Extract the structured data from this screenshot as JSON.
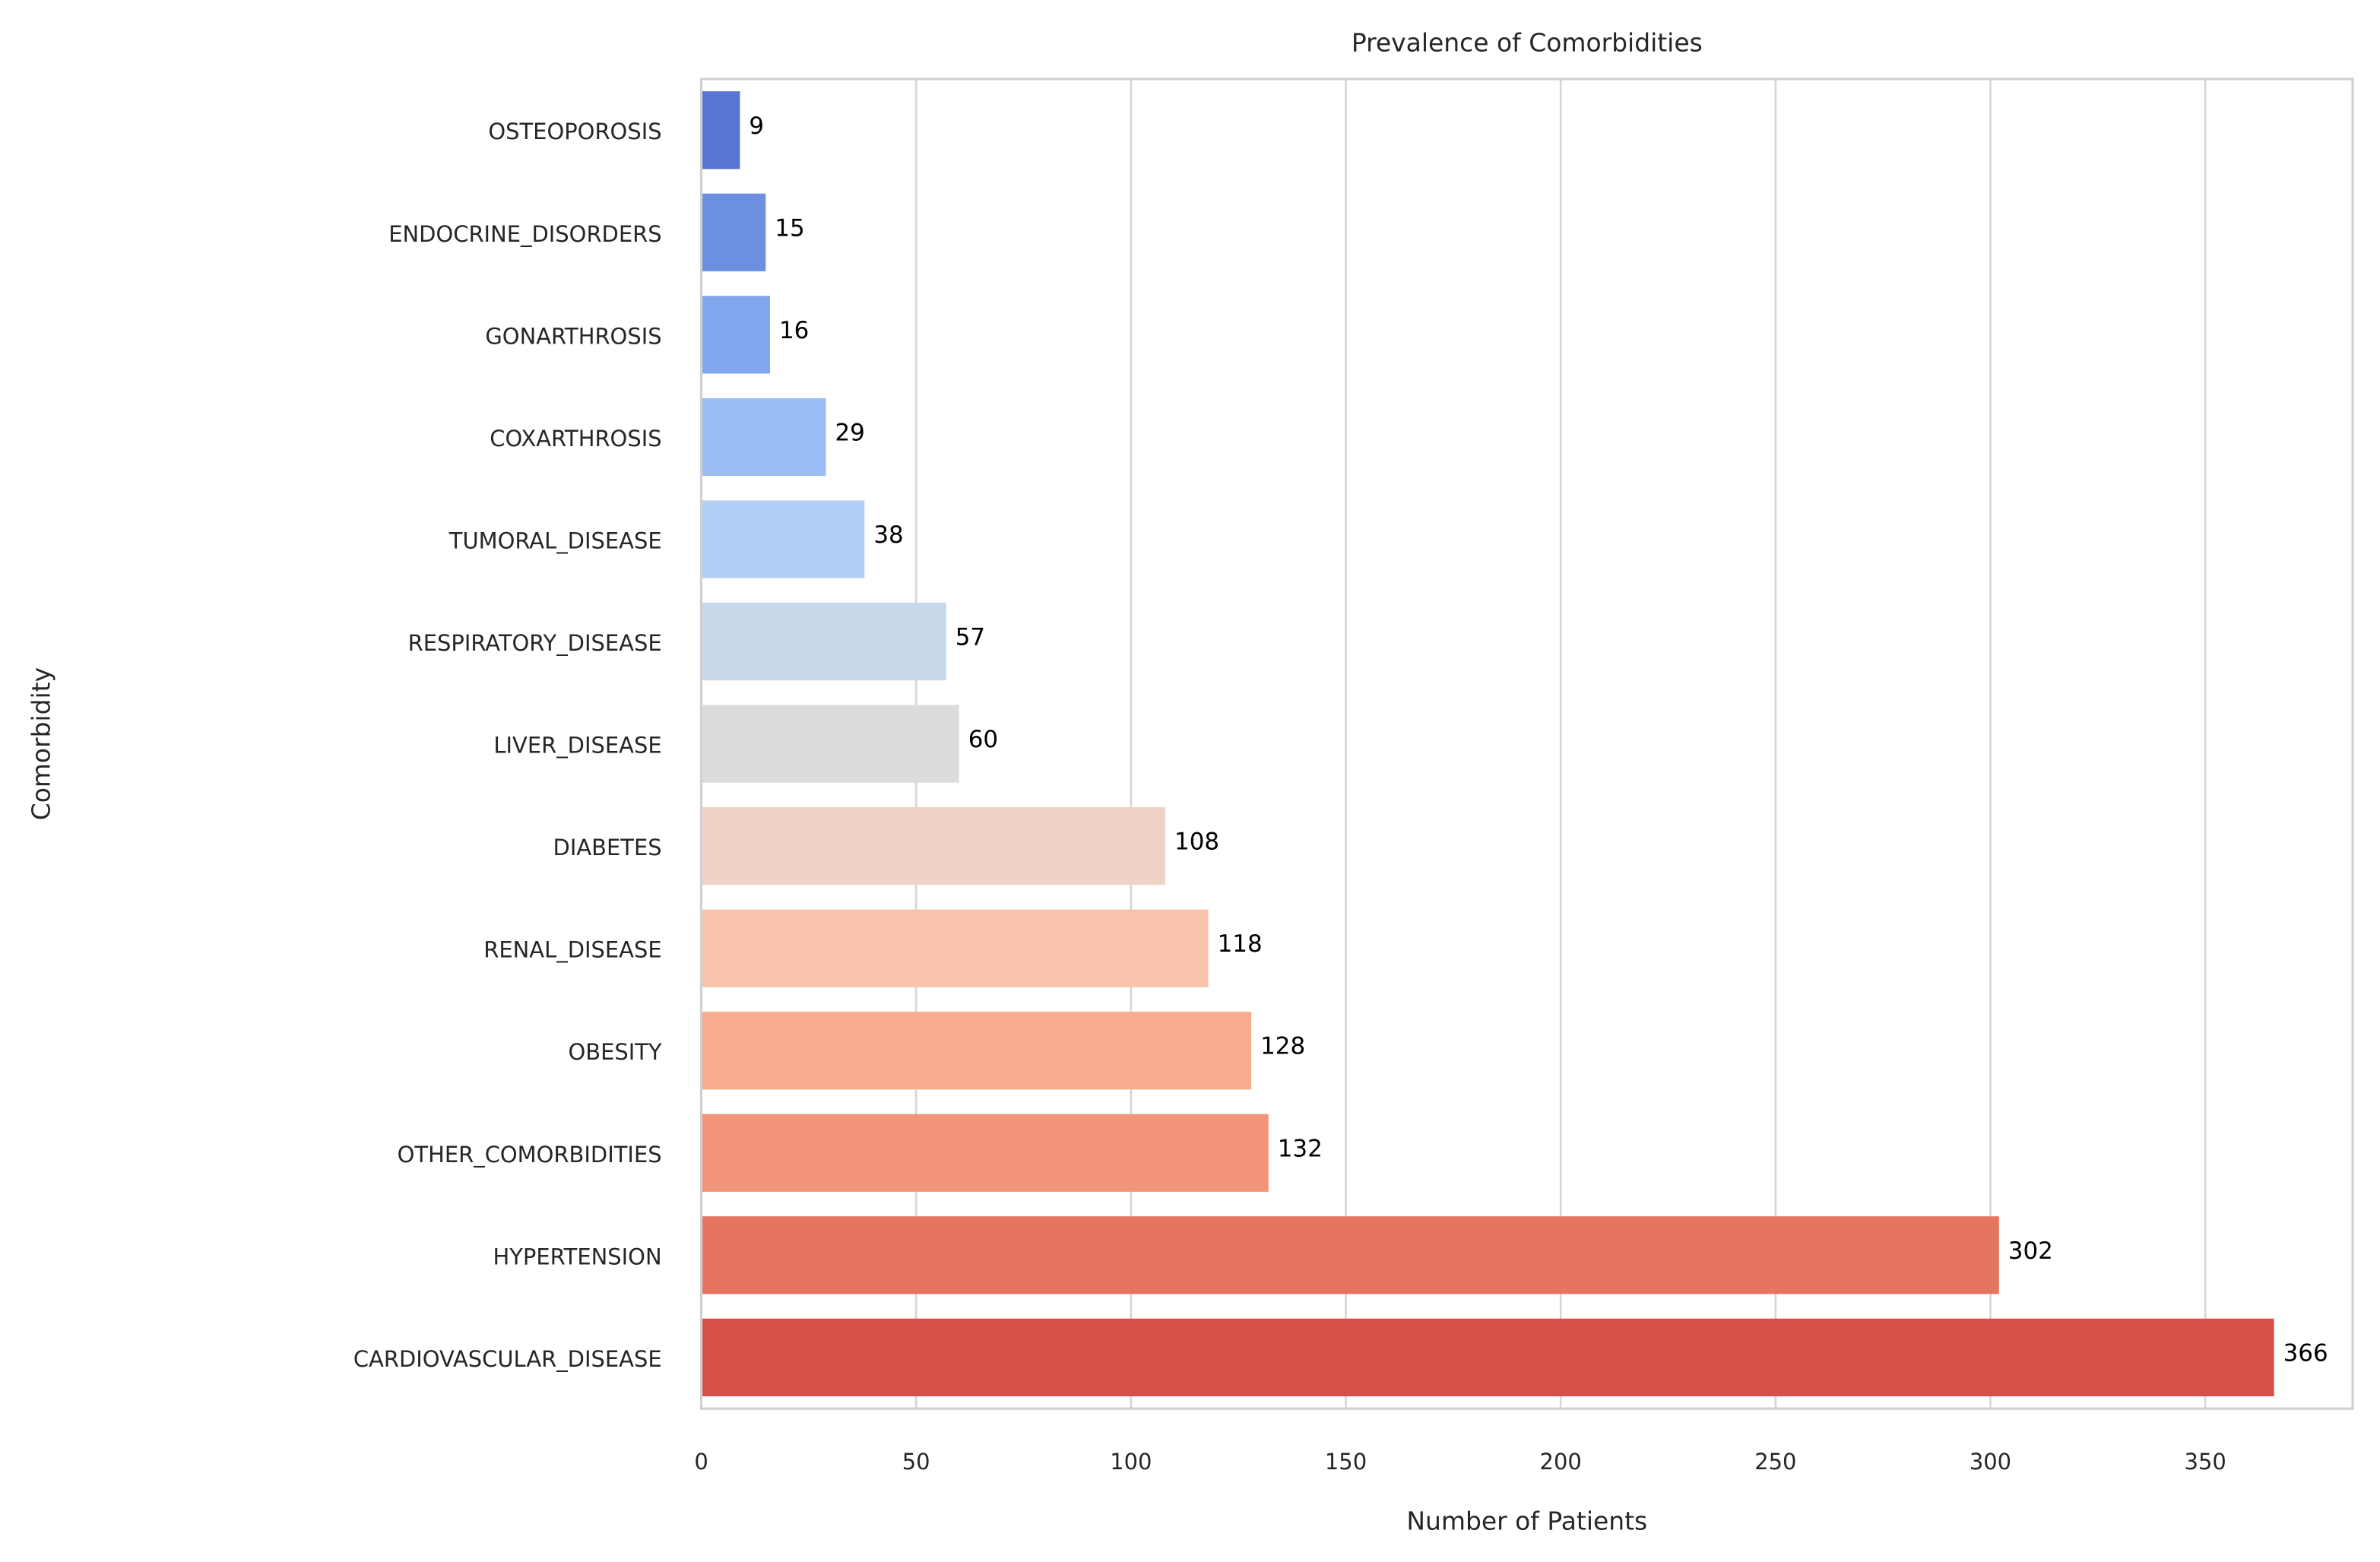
{
  "chart_data": {
    "type": "bar",
    "orientation": "horizontal",
    "title": "Prevalence of Comorbidities",
    "x_label": "Number of Patients",
    "y_label": "Comorbidity",
    "categories": [
      "OSTEOPOROSIS",
      "ENDOCRINE_DISORDERS",
      "GONARTHROSIS",
      "COXARTHROSIS",
      "TUMORAL_DISEASE",
      "RESPIRATORY_DISEASE",
      "LIVER_DISEASE",
      "DIABETES",
      "RENAL_DISEASE",
      "OBESITY",
      "OTHER_COMORBIDITIES",
      "HYPERTENSION",
      "CARDIOVASCULAR_DISEASE"
    ],
    "values": [
      9,
      15,
      16,
      29,
      38,
      57,
      60,
      108,
      118,
      128,
      132,
      302,
      366
    ],
    "colors": [
      "#5875d4",
      "#6c8fe2",
      "#83a7ee",
      "#9bbdf5",
      "#b3cff5",
      "#c9d8eb",
      "#dcdcdc",
      "#f0d3c7",
      "#f8c2ab",
      "#f7ac91",
      "#f29479",
      "#e6755f",
      "#d55048"
    ],
    "xlim": [
      0,
      384.3
    ],
    "xticks": [
      0,
      50,
      100,
      150,
      200,
      250,
      300,
      350
    ],
    "grid": true
  }
}
